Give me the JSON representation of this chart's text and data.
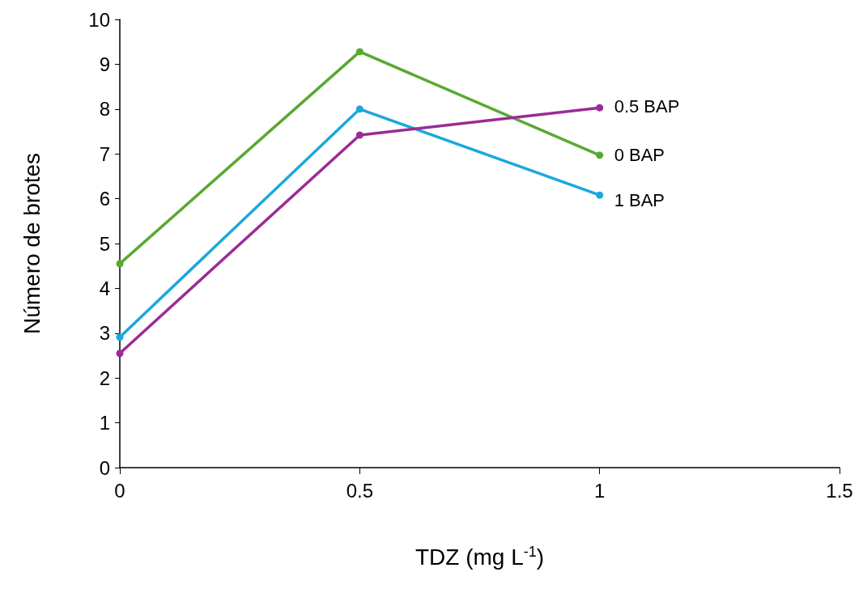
{
  "chart_data": {
    "type": "line",
    "xlabel": "TDZ (mg L$^{-1}$)",
    "ylabel": "Número de brotes",
    "xlim": [
      0,
      1.5
    ],
    "xticks": [
      0,
      0.5,
      1,
      1.5
    ],
    "ylim": [
      0,
      10
    ],
    "yticks": [
      0,
      1,
      2,
      3,
      4,
      5,
      6,
      7,
      8,
      9,
      10
    ],
    "grid": false,
    "legend": false,
    "marker": "circle",
    "line_style": "solid",
    "series": [
      {
        "name": "0 BAP",
        "color": "#5aa832",
        "x": [
          0,
          0.5,
          1
        ],
        "values": [
          4.55,
          9.28,
          6.97
        ]
      },
      {
        "name": "1 BAP",
        "color": "#1ba8dc",
        "x": [
          0,
          0.5,
          1
        ],
        "values": [
          2.91,
          8.0,
          6.08
        ]
      },
      {
        "name": "0.5 BAP",
        "color": "#9b2b96",
        "x": [
          0,
          0.5,
          1
        ],
        "values": [
          2.55,
          7.42,
          8.03
        ]
      }
    ]
  }
}
